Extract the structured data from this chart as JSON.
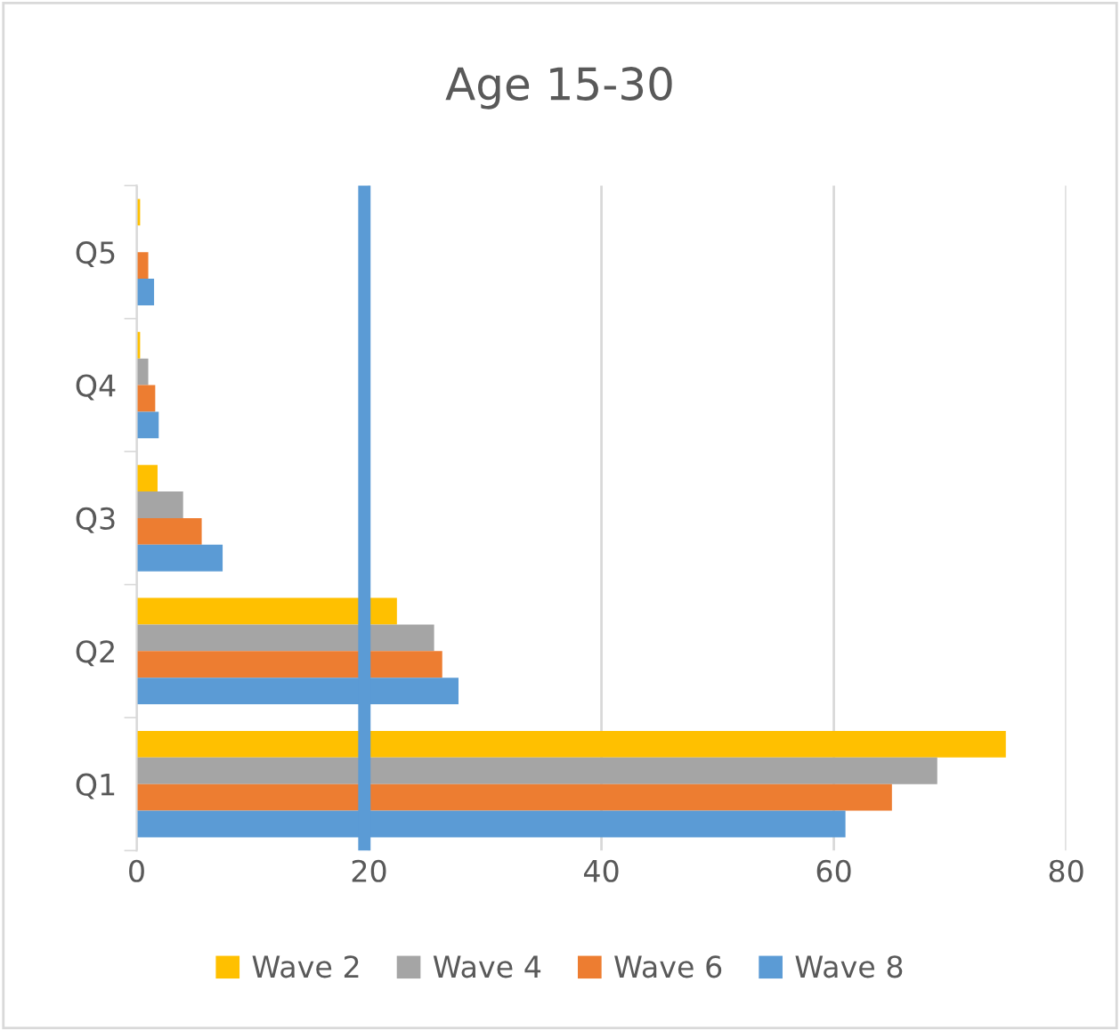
{
  "chart_data": {
    "type": "bar",
    "orientation": "horizontal",
    "title": "Age 15-30",
    "categories": [
      "Q5",
      "Q4",
      "Q3",
      "Q2",
      "Q1"
    ],
    "series": [
      {
        "name": "Wave 2",
        "color": "#ffc000",
        "values": [
          0.3,
          0.3,
          1.8,
          22.4,
          74.8
        ]
      },
      {
        "name": "Wave 4",
        "color": "#a5a5a5",
        "values": [
          0,
          1.0,
          4.0,
          25.6,
          68.9
        ]
      },
      {
        "name": "Wave 6",
        "color": "#ed7d31",
        "values": [
          1.0,
          1.6,
          5.6,
          26.3,
          65.0
        ]
      },
      {
        "name": "Wave 8",
        "color": "#5b9bd5",
        "values": [
          1.5,
          1.9,
          7.4,
          27.7,
          61.0
        ]
      }
    ],
    "xlim": [
      0,
      80
    ],
    "xticks": [
      0,
      20,
      40,
      60,
      80
    ],
    "grid": "x",
    "legend": "bottom",
    "ref_lines": [
      {
        "axis": "x",
        "value": 19.6,
        "color": "#5b9bd5"
      }
    ]
  }
}
